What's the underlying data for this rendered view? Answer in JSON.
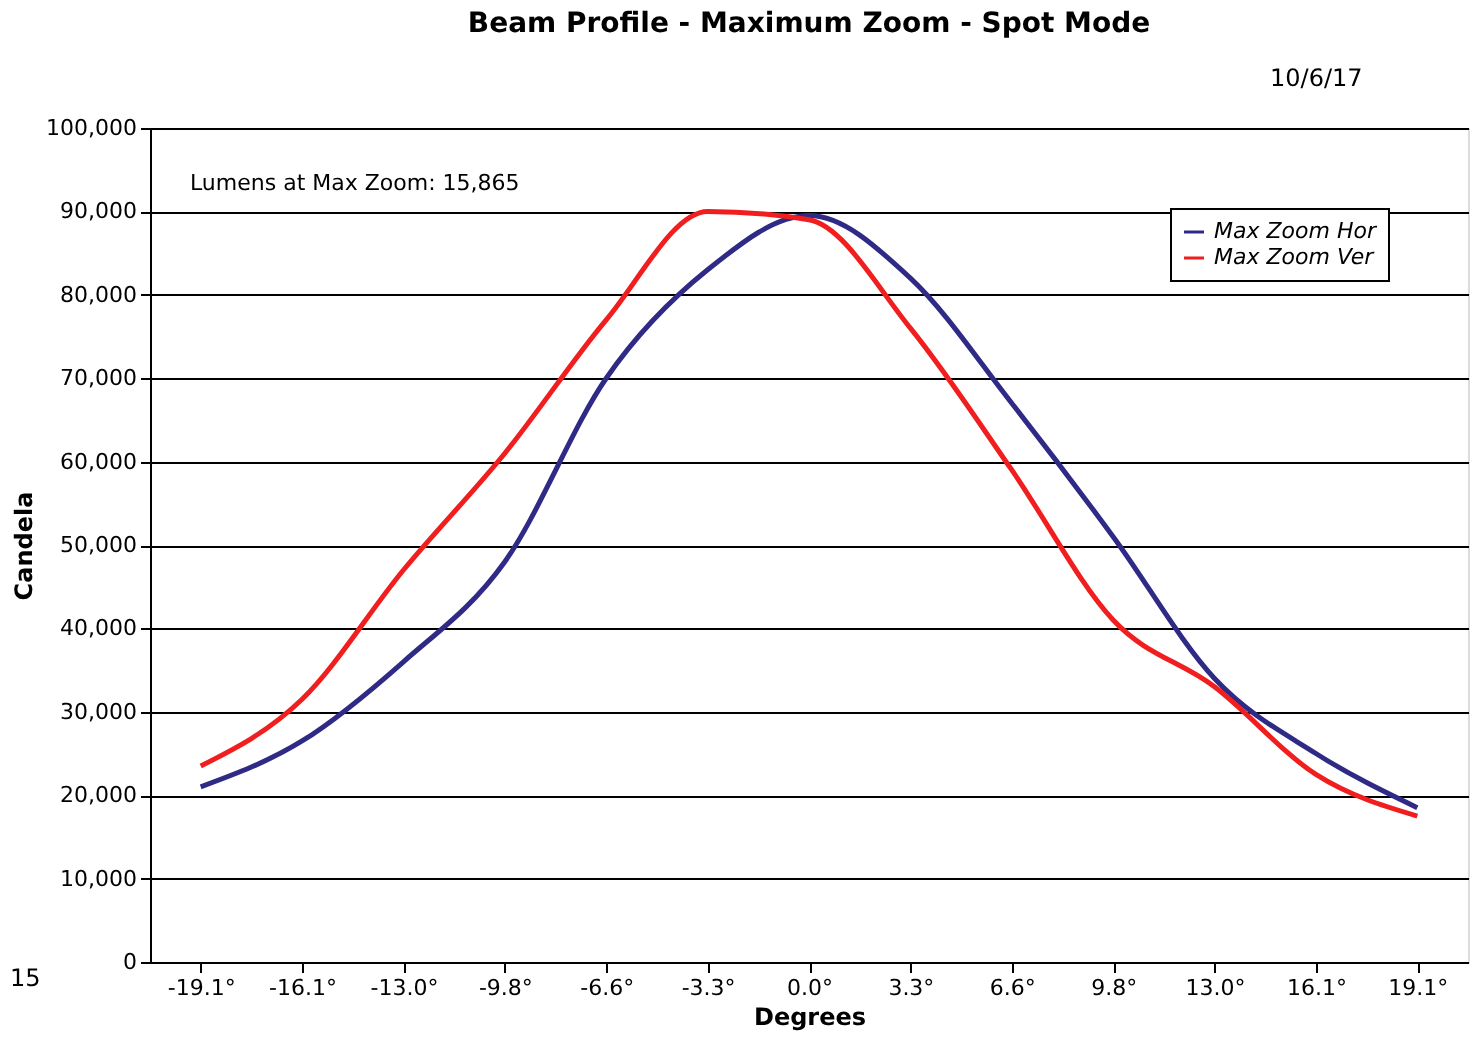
{
  "chart_data": {
    "type": "line",
    "title": "Beam Profile - Maximum Zoom - Spot Mode",
    "xlabel": "Degrees",
    "ylabel": "Candela",
    "categories": [
      "-19.1°",
      "-16.1°",
      "-13.0°",
      "-9.8°",
      "-6.6°",
      "-3.3°",
      "0.0°",
      "3.3°",
      "6.6°",
      "9.8°",
      "13.0°",
      "16.1°",
      "19.1°"
    ],
    "series": [
      {
        "name": "Max Zoom Hor",
        "color": "#2e2a85",
        "values": [
          21000,
          26500,
          36000,
          48000,
          70000,
          83000,
          89500,
          82000,
          67000,
          51000,
          34000,
          25000,
          18500
        ]
      },
      {
        "name": "Max Zoom Ver",
        "color": "#f01e1e",
        "values": [
          23500,
          31500,
          47000,
          61000,
          77000,
          90000,
          89000,
          76000,
          59000,
          41000,
          33000,
          22500,
          17500
        ]
      }
    ],
    "ylim": [
      0,
      100000
    ],
    "yticks": [
      0,
      {
        "value": 10000,
        "label": "10,000"
      },
      {
        "value": 20000,
        "label": "20,000"
      },
      {
        "value": 30000,
        "label": "30,000"
      },
      {
        "value": 40000,
        "label": "40,000"
      },
      {
        "value": 50000,
        "label": "50,000"
      },
      {
        "value": 60000,
        "label": "60,000"
      },
      {
        "value": 70000,
        "label": "70,000"
      },
      {
        "value": 80000,
        "label": "80,000"
      },
      {
        "value": 90000,
        "label": "90,000"
      },
      {
        "value": 100000,
        "label": "100,000"
      }
    ],
    "grid": "y",
    "legend": "top right",
    "marker": "none",
    "line_style": "solid",
    "annotations": [
      "Lumens at Max Zoom: 15,865",
      "10/6/17",
      "15"
    ]
  }
}
